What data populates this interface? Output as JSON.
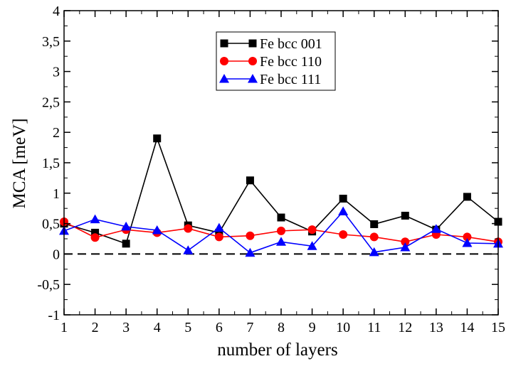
{
  "chart_data": {
    "type": "line",
    "title": "",
    "xlabel": "number of layers",
    "ylabel": "MCA [meV]",
    "x": [
      1,
      2,
      3,
      4,
      5,
      6,
      7,
      8,
      9,
      10,
      11,
      12,
      13,
      14,
      15
    ],
    "xlim": [
      1,
      15
    ],
    "ylim": [
      -1,
      4
    ],
    "x_ticks": [
      "1",
      "2",
      "3",
      "4",
      "5",
      "6",
      "7",
      "8",
      "9",
      "10",
      "11",
      "12",
      "13",
      "14",
      "15"
    ],
    "y_ticks": [
      {
        "value": -1,
        "label": "-1"
      },
      {
        "value": -0.5,
        "label": "-0,5"
      },
      {
        "value": 0,
        "label": "0"
      },
      {
        "value": 0.5,
        "label": "0,5"
      },
      {
        "value": 1,
        "label": "1"
      },
      {
        "value": 1.5,
        "label": "1,5"
      },
      {
        "value": 2,
        "label": "2"
      },
      {
        "value": 2.5,
        "label": "2,5"
      },
      {
        "value": 3,
        "label": "3"
      },
      {
        "value": 3.5,
        "label": "3,5"
      },
      {
        "value": 4,
        "label": "4"
      }
    ],
    "zero_line": {
      "value": 0,
      "style": "dashed"
    },
    "legend_position": "top-center",
    "series": [
      {
        "name": "Fe bcc 001",
        "color": "#000000",
        "marker": "square",
        "values": [
          0.5,
          0.35,
          0.17,
          1.9,
          0.47,
          0.35,
          1.21,
          0.6,
          0.37,
          0.91,
          0.49,
          0.63,
          0.4,
          0.94,
          0.53
        ]
      },
      {
        "name": "Fe bcc 110",
        "color": "#ff0000",
        "marker": "circle",
        "values": [
          0.53,
          0.27,
          0.4,
          0.35,
          0.42,
          0.28,
          0.3,
          0.38,
          0.4,
          0.32,
          0.28,
          0.2,
          0.32,
          0.28,
          0.2
        ]
      },
      {
        "name": "Fe bcc 111",
        "color": "#0000ff",
        "marker": "triangle",
        "values": [
          0.38,
          0.57,
          0.45,
          0.39,
          0.06,
          0.43,
          0.02,
          0.2,
          0.13,
          0.7,
          0.03,
          0.11,
          0.41,
          0.18,
          0.17
        ]
      }
    ]
  }
}
